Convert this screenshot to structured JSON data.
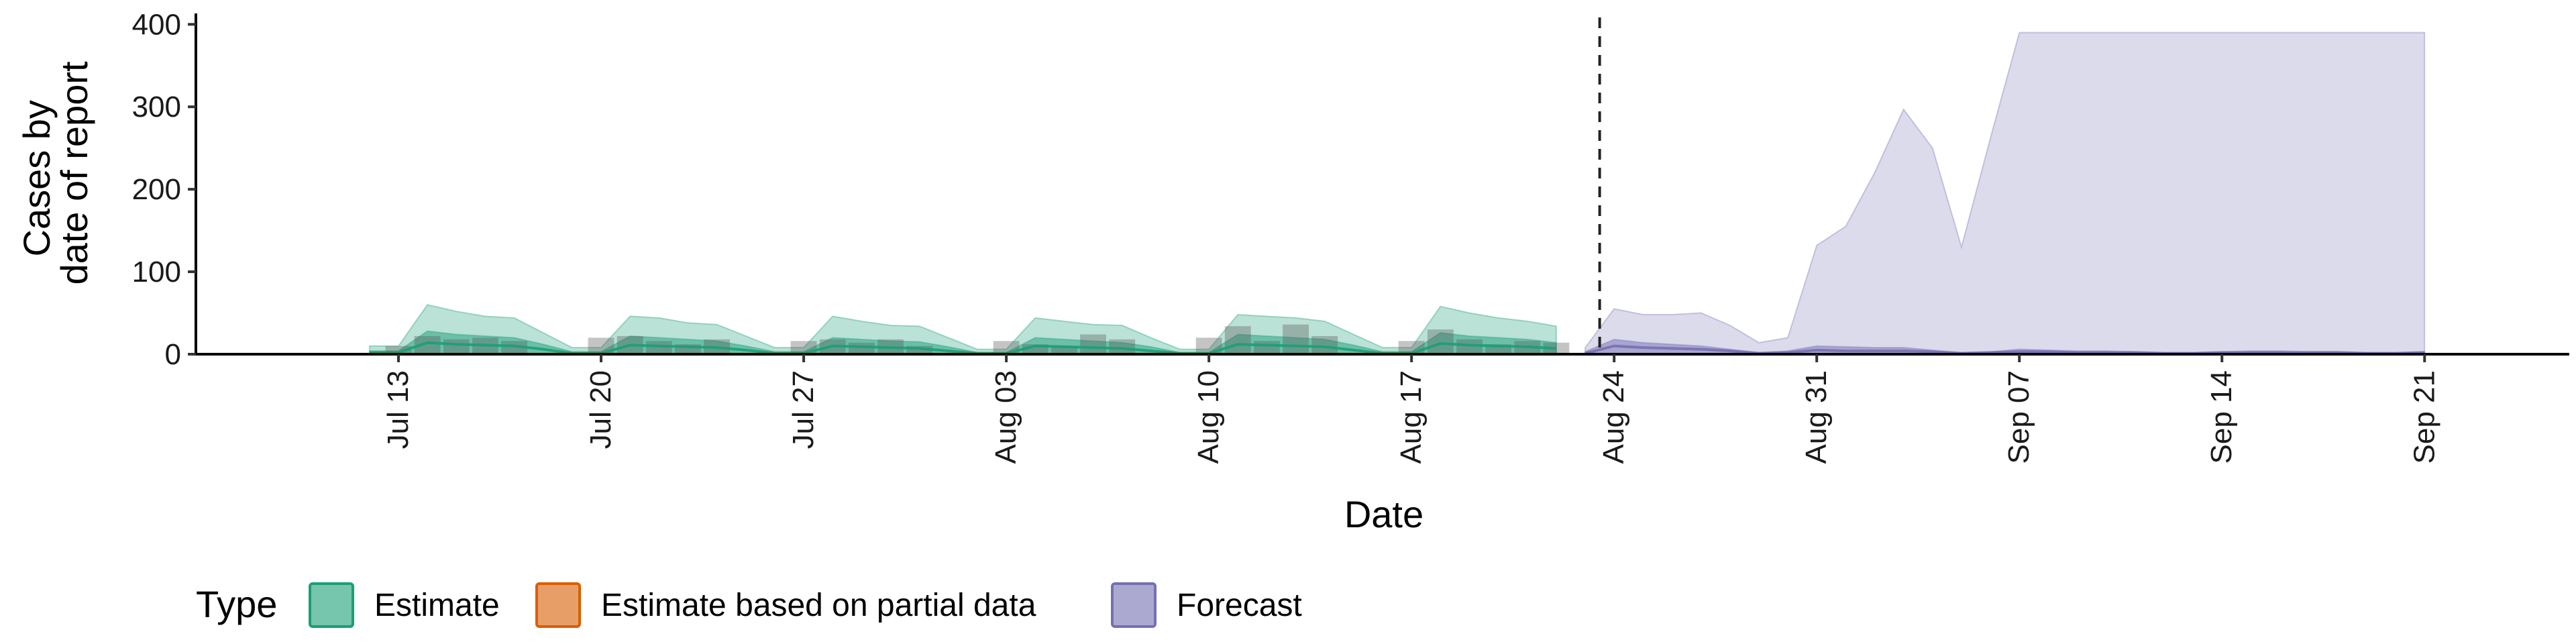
{
  "chart_data": {
    "type": "area",
    "title": "",
    "xlabel": "Date",
    "ylabel": [
      "Cases by",
      "date of report"
    ],
    "ylim": [
      0,
      410
    ],
    "xlim": [
      "2020-07-06",
      "2020-09-26"
    ],
    "y_ticks": [
      0,
      100,
      200,
      300,
      400
    ],
    "x_ticks": [
      {
        "date": "2020-07-13",
        "label": "Jul 13"
      },
      {
        "date": "2020-07-20",
        "label": "Jul 20"
      },
      {
        "date": "2020-07-27",
        "label": "Jul 27"
      },
      {
        "date": "2020-08-03",
        "label": "Aug 03"
      },
      {
        "date": "2020-08-10",
        "label": "Aug 10"
      },
      {
        "date": "2020-08-17",
        "label": "Aug 17"
      },
      {
        "date": "2020-08-24",
        "label": "Aug 24"
      },
      {
        "date": "2020-08-31",
        "label": "Aug 31"
      },
      {
        "date": "2020-09-07",
        "label": "Sep 07"
      },
      {
        "date": "2020-09-14",
        "label": "Sep 14"
      },
      {
        "date": "2020-09-21",
        "label": "Sep 21"
      }
    ],
    "forecast_start": "2020-08-23",
    "grid": false,
    "legend": {
      "title": "Type",
      "position": "bottom",
      "items": [
        {
          "label": "Estimate",
          "fill": "#1b9e77",
          "stroke": "#1b9e77"
        },
        {
          "label": "Estimate based on partial data",
          "fill": "#d95f02",
          "stroke": "#d95f02"
        },
        {
          "label": "Forecast",
          "fill": "#7570b3",
          "stroke": "#7570b3"
        }
      ]
    },
    "series": [
      {
        "type": "Estimate",
        "color": "#1b9e77",
        "x": [
          "2020-07-12",
          "2020-07-13",
          "2020-07-14",
          "2020-07-15",
          "2020-07-16",
          "2020-07-17",
          "2020-07-18",
          "2020-07-19",
          "2020-07-20",
          "2020-07-21",
          "2020-07-22",
          "2020-07-23",
          "2020-07-24",
          "2020-07-25",
          "2020-07-26",
          "2020-07-27",
          "2020-07-28",
          "2020-07-29",
          "2020-07-30",
          "2020-07-31",
          "2020-08-01",
          "2020-08-02",
          "2020-08-03",
          "2020-08-04",
          "2020-08-05",
          "2020-08-06",
          "2020-08-07",
          "2020-08-08",
          "2020-08-09",
          "2020-08-10",
          "2020-08-11",
          "2020-08-12",
          "2020-08-13",
          "2020-08-14",
          "2020-08-15",
          "2020-08-16",
          "2020-08-17",
          "2020-08-18",
          "2020-08-19",
          "2020-08-20",
          "2020-08-21",
          "2020-08-22"
        ],
        "upper90": [
          10,
          10,
          60,
          52,
          46,
          44,
          26,
          8,
          8,
          46,
          44,
          38,
          36,
          22,
          8,
          8,
          46,
          40,
          35,
          34,
          20,
          6,
          6,
          44,
          40,
          36,
          35,
          20,
          6,
          6,
          48,
          46,
          44,
          40,
          24,
          8,
          8,
          58,
          50,
          44,
          40,
          34
        ],
        "upper50": [
          4,
          4,
          28,
          24,
          22,
          20,
          12,
          3,
          3,
          22,
          20,
          18,
          16,
          10,
          3,
          3,
          20,
          18,
          16,
          15,
          9,
          2,
          2,
          20,
          18,
          16,
          14,
          9,
          2,
          2,
          24,
          22,
          20,
          18,
          11,
          3,
          3,
          26,
          22,
          20,
          18,
          14
        ],
        "median": [
          2,
          2,
          14,
          12,
          11,
          10,
          6,
          1,
          1,
          11,
          10,
          9,
          8,
          5,
          1,
          1,
          10,
          9,
          8,
          7,
          4,
          1,
          1,
          10,
          9,
          8,
          7,
          4,
          1,
          1,
          12,
          11,
          10,
          9,
          5,
          1,
          1,
          13,
          11,
          10,
          9,
          7
        ]
      },
      {
        "type": "Forecast",
        "color": "#7570b3",
        "x": [
          "2020-08-23",
          "2020-08-24",
          "2020-08-25",
          "2020-08-26",
          "2020-08-27",
          "2020-08-28",
          "2020-08-29",
          "2020-08-30",
          "2020-08-31",
          "2020-09-01",
          "2020-09-02",
          "2020-09-03",
          "2020-09-04",
          "2020-09-05",
          "2020-09-06",
          "2020-09-07",
          "2020-09-08",
          "2020-09-09",
          "2020-09-10",
          "2020-09-11",
          "2020-09-12",
          "2020-09-13",
          "2020-09-14",
          "2020-09-15",
          "2020-09-16",
          "2020-09-17",
          "2020-09-18",
          "2020-09-19",
          "2020-09-20",
          "2020-09-21"
        ],
        "upper90": [
          8,
          55,
          48,
          48,
          50,
          35,
          14,
          20,
          132,
          155,
          220,
          297,
          250,
          130,
          262,
          390,
          390,
          390,
          390,
          390,
          390,
          390,
          390,
          390,
          390,
          390,
          390,
          390,
          390,
          390
        ],
        "upper50": [
          3,
          18,
          14,
          12,
          10,
          6,
          2,
          4,
          10,
          9,
          8,
          8,
          5,
          2,
          3,
          6,
          5,
          4,
          4,
          3,
          2,
          2,
          3,
          4,
          4,
          3,
          3,
          2,
          2,
          3
        ],
        "median": [
          1,
          10,
          8,
          7,
          6,
          4,
          1,
          2,
          5,
          4,
          4,
          4,
          3,
          1,
          2,
          3,
          3,
          2,
          2,
          2,
          1,
          1,
          2,
          2,
          2,
          2,
          2,
          1,
          1,
          2
        ]
      }
    ],
    "observed_bars": {
      "x": [
        "2020-07-13",
        "2020-07-14",
        "2020-07-15",
        "2020-07-16",
        "2020-07-17",
        "2020-07-20",
        "2020-07-21",
        "2020-07-22",
        "2020-07-23",
        "2020-07-24",
        "2020-07-27",
        "2020-07-28",
        "2020-07-29",
        "2020-07-30",
        "2020-07-31",
        "2020-08-03",
        "2020-08-04",
        "2020-08-05",
        "2020-08-06",
        "2020-08-07",
        "2020-08-10",
        "2020-08-11",
        "2020-08-12",
        "2020-08-13",
        "2020-08-14",
        "2020-08-17",
        "2020-08-18",
        "2020-08-19",
        "2020-08-20",
        "2020-08-21",
        "2020-08-22"
      ],
      "values": [
        10,
        22,
        18,
        20,
        16,
        20,
        22,
        16,
        12,
        18,
        16,
        18,
        14,
        18,
        10,
        16,
        12,
        10,
        24,
        18,
        20,
        34,
        16,
        36,
        22,
        16,
        30,
        18,
        12,
        16,
        14
      ]
    }
  }
}
